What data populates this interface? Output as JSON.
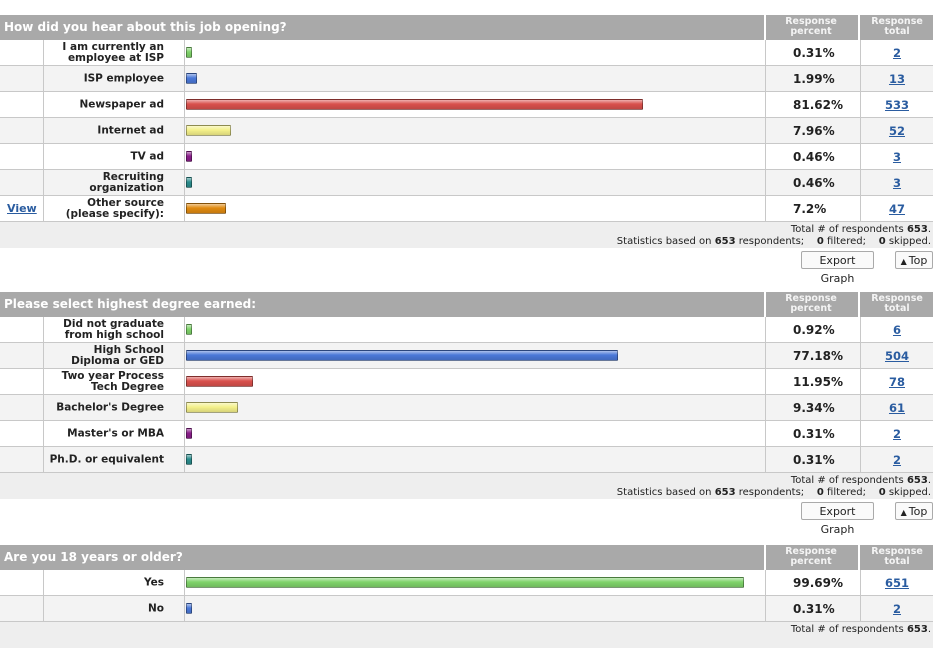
{
  "chart_data": [
    {
      "type": "bar",
      "title": "How did you hear about this job opening?",
      "column_headers": {
        "percent": "Response percent",
        "total": "Response total"
      },
      "categories": [
        "I am currently an employee at ISP",
        "ISP employee",
        "Newspaper ad",
        "Internet ad",
        "TV ad",
        "Recruiting organization",
        "Other source (please specify):"
      ],
      "percent_labels": [
        "0.31%",
        "1.99%",
        "81.62%",
        "7.96%",
        "0.46%",
        "0.46%",
        "7.2%"
      ],
      "values": [
        0.31,
        1.99,
        81.62,
        7.96,
        0.46,
        0.46,
        7.2
      ],
      "totals": [
        "2",
        "13",
        "533",
        "52",
        "3",
        "3",
        "47"
      ],
      "bar_colors": [
        "#7fd36a",
        "#4a78d8",
        "#d9504c",
        "#f4f08a",
        "#8a1e8a",
        "#2a8c8c",
        "#e08a10"
      ],
      "view_link": {
        "row": 6,
        "label": "View"
      },
      "footer": {
        "respondents_label": "Total # of respondents",
        "respondents": "653",
        "stats_prefix": "Statistics based on",
        "stats_count": "653",
        "stats_suffix": "respondents;",
        "filtered": "0",
        "filtered_label": "filtered;",
        "skipped": "0",
        "skipped_label": "skipped."
      }
    },
    {
      "type": "bar",
      "title": "Please select highest degree earned:",
      "column_headers": {
        "percent": "Response percent",
        "total": "Response total"
      },
      "categories": [
        "Did not graduate from high school",
        "High School Diploma or GED",
        "Two year Process Tech Degree",
        "Bachelor's Degree",
        "Master's or MBA",
        "Ph.D. or equivalent"
      ],
      "percent_labels": [
        "0.92%",
        "77.18%",
        "11.95%",
        "9.34%",
        "0.31%",
        "0.31%"
      ],
      "values": [
        0.92,
        77.18,
        11.95,
        9.34,
        0.31,
        0.31
      ],
      "totals": [
        "6",
        "504",
        "78",
        "61",
        "2",
        "2"
      ],
      "bar_colors": [
        "#7fd36a",
        "#4a78d8",
        "#d9504c",
        "#f4f08a",
        "#8a1e8a",
        "#2a8c8c"
      ],
      "footer": {
        "respondents_label": "Total # of respondents",
        "respondents": "653",
        "stats_prefix": "Statistics based on",
        "stats_count": "653",
        "stats_suffix": "respondents;",
        "filtered": "0",
        "filtered_label": "filtered;",
        "skipped": "0",
        "skipped_label": "skipped."
      }
    },
    {
      "type": "bar",
      "title": "Are you 18 years or older?",
      "column_headers": {
        "percent": "Response percent",
        "total": "Response total"
      },
      "categories": [
        "Yes",
        "No"
      ],
      "percent_labels": [
        "99.69%",
        "0.31%"
      ],
      "values": [
        99.69,
        0.31
      ],
      "totals": [
        "651",
        "2"
      ],
      "bar_colors": [
        "#7fd36a",
        "#4a78d8"
      ],
      "footer": {
        "respondents_label": "Total # of respondents",
        "respondents": "653"
      }
    }
  ],
  "buttons": {
    "export": "Export Graph",
    "top": "Top",
    "top_icon": "up-triangle-icon"
  }
}
